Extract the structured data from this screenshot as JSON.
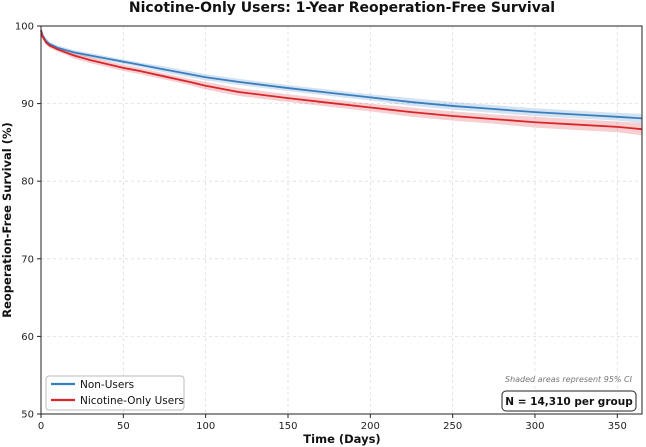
{
  "chart_data": {
    "type": "line",
    "title": "Nicotine-Only Users: 1-Year Reoperation-Free Survival",
    "xlabel": "Time (Days)",
    "ylabel": "Reoperation-Free Survival (%)",
    "xlim": [
      0,
      365
    ],
    "ylim": [
      50,
      100
    ],
    "xticks": [
      0,
      50,
      100,
      150,
      200,
      250,
      300,
      350
    ],
    "yticks": [
      50,
      60,
      70,
      80,
      90,
      100
    ],
    "grid": true,
    "legend_position": "lower-left",
    "annotation": "Shaded areas represent 95% CI",
    "sample_size_label": "N = 14,310 per group",
    "series": [
      {
        "name": "Non-Users",
        "color": "#3a7ebf",
        "x": [
          0,
          1,
          3,
          5,
          8,
          10,
          15,
          20,
          30,
          40,
          50,
          60,
          75,
          90,
          100,
          120,
          150,
          175,
          200,
          225,
          250,
          275,
          300,
          325,
          350,
          365
        ],
        "y": [
          99.5,
          98.8,
          98.1,
          97.7,
          97.4,
          97.2,
          96.9,
          96.6,
          96.2,
          95.8,
          95.4,
          95.0,
          94.4,
          93.8,
          93.4,
          92.8,
          92.0,
          91.4,
          90.8,
          90.2,
          89.7,
          89.3,
          88.9,
          88.6,
          88.3,
          88.1
        ],
        "ci_upper": [
          99.6,
          99.0,
          98.4,
          98.0,
          97.7,
          97.5,
          97.2,
          96.9,
          96.5,
          96.1,
          95.7,
          95.3,
          94.8,
          94.2,
          93.8,
          93.2,
          92.4,
          91.8,
          91.2,
          90.7,
          90.2,
          89.8,
          89.4,
          89.1,
          88.8,
          88.7
        ],
        "ci_lower": [
          99.4,
          98.6,
          97.8,
          97.4,
          97.1,
          96.9,
          96.6,
          96.3,
          95.9,
          95.5,
          95.1,
          94.7,
          94.0,
          93.4,
          93.0,
          92.4,
          91.6,
          91.0,
          90.4,
          89.7,
          89.2,
          88.8,
          88.4,
          88.1,
          87.8,
          87.5
        ]
      },
      {
        "name": "Nicotine-Only Users",
        "color": "#d9262b",
        "x": [
          0,
          1,
          3,
          5,
          8,
          10,
          15,
          20,
          30,
          40,
          50,
          60,
          75,
          90,
          100,
          120,
          150,
          175,
          200,
          225,
          250,
          275,
          300,
          325,
          350,
          365
        ],
        "y": [
          99.4,
          98.6,
          97.9,
          97.5,
          97.2,
          97.0,
          96.6,
          96.2,
          95.6,
          95.1,
          94.6,
          94.2,
          93.5,
          92.8,
          92.3,
          91.5,
          90.7,
          90.1,
          89.5,
          88.9,
          88.4,
          88.0,
          87.6,
          87.3,
          87.0,
          86.7
        ],
        "ci_upper": [
          99.5,
          98.9,
          98.2,
          97.8,
          97.5,
          97.3,
          96.9,
          96.6,
          96.0,
          95.5,
          95.0,
          94.6,
          93.9,
          93.2,
          92.8,
          92.0,
          91.2,
          90.6,
          90.0,
          89.5,
          89.0,
          88.6,
          88.3,
          88.0,
          87.7,
          87.5
        ],
        "ci_lower": [
          99.3,
          98.3,
          97.6,
          97.2,
          96.9,
          96.7,
          96.3,
          95.8,
          95.2,
          94.7,
          94.2,
          93.8,
          93.1,
          92.4,
          91.8,
          91.0,
          90.2,
          89.6,
          89.0,
          88.3,
          87.8,
          87.4,
          86.9,
          86.6,
          86.3,
          85.9
        ]
      }
    ]
  }
}
